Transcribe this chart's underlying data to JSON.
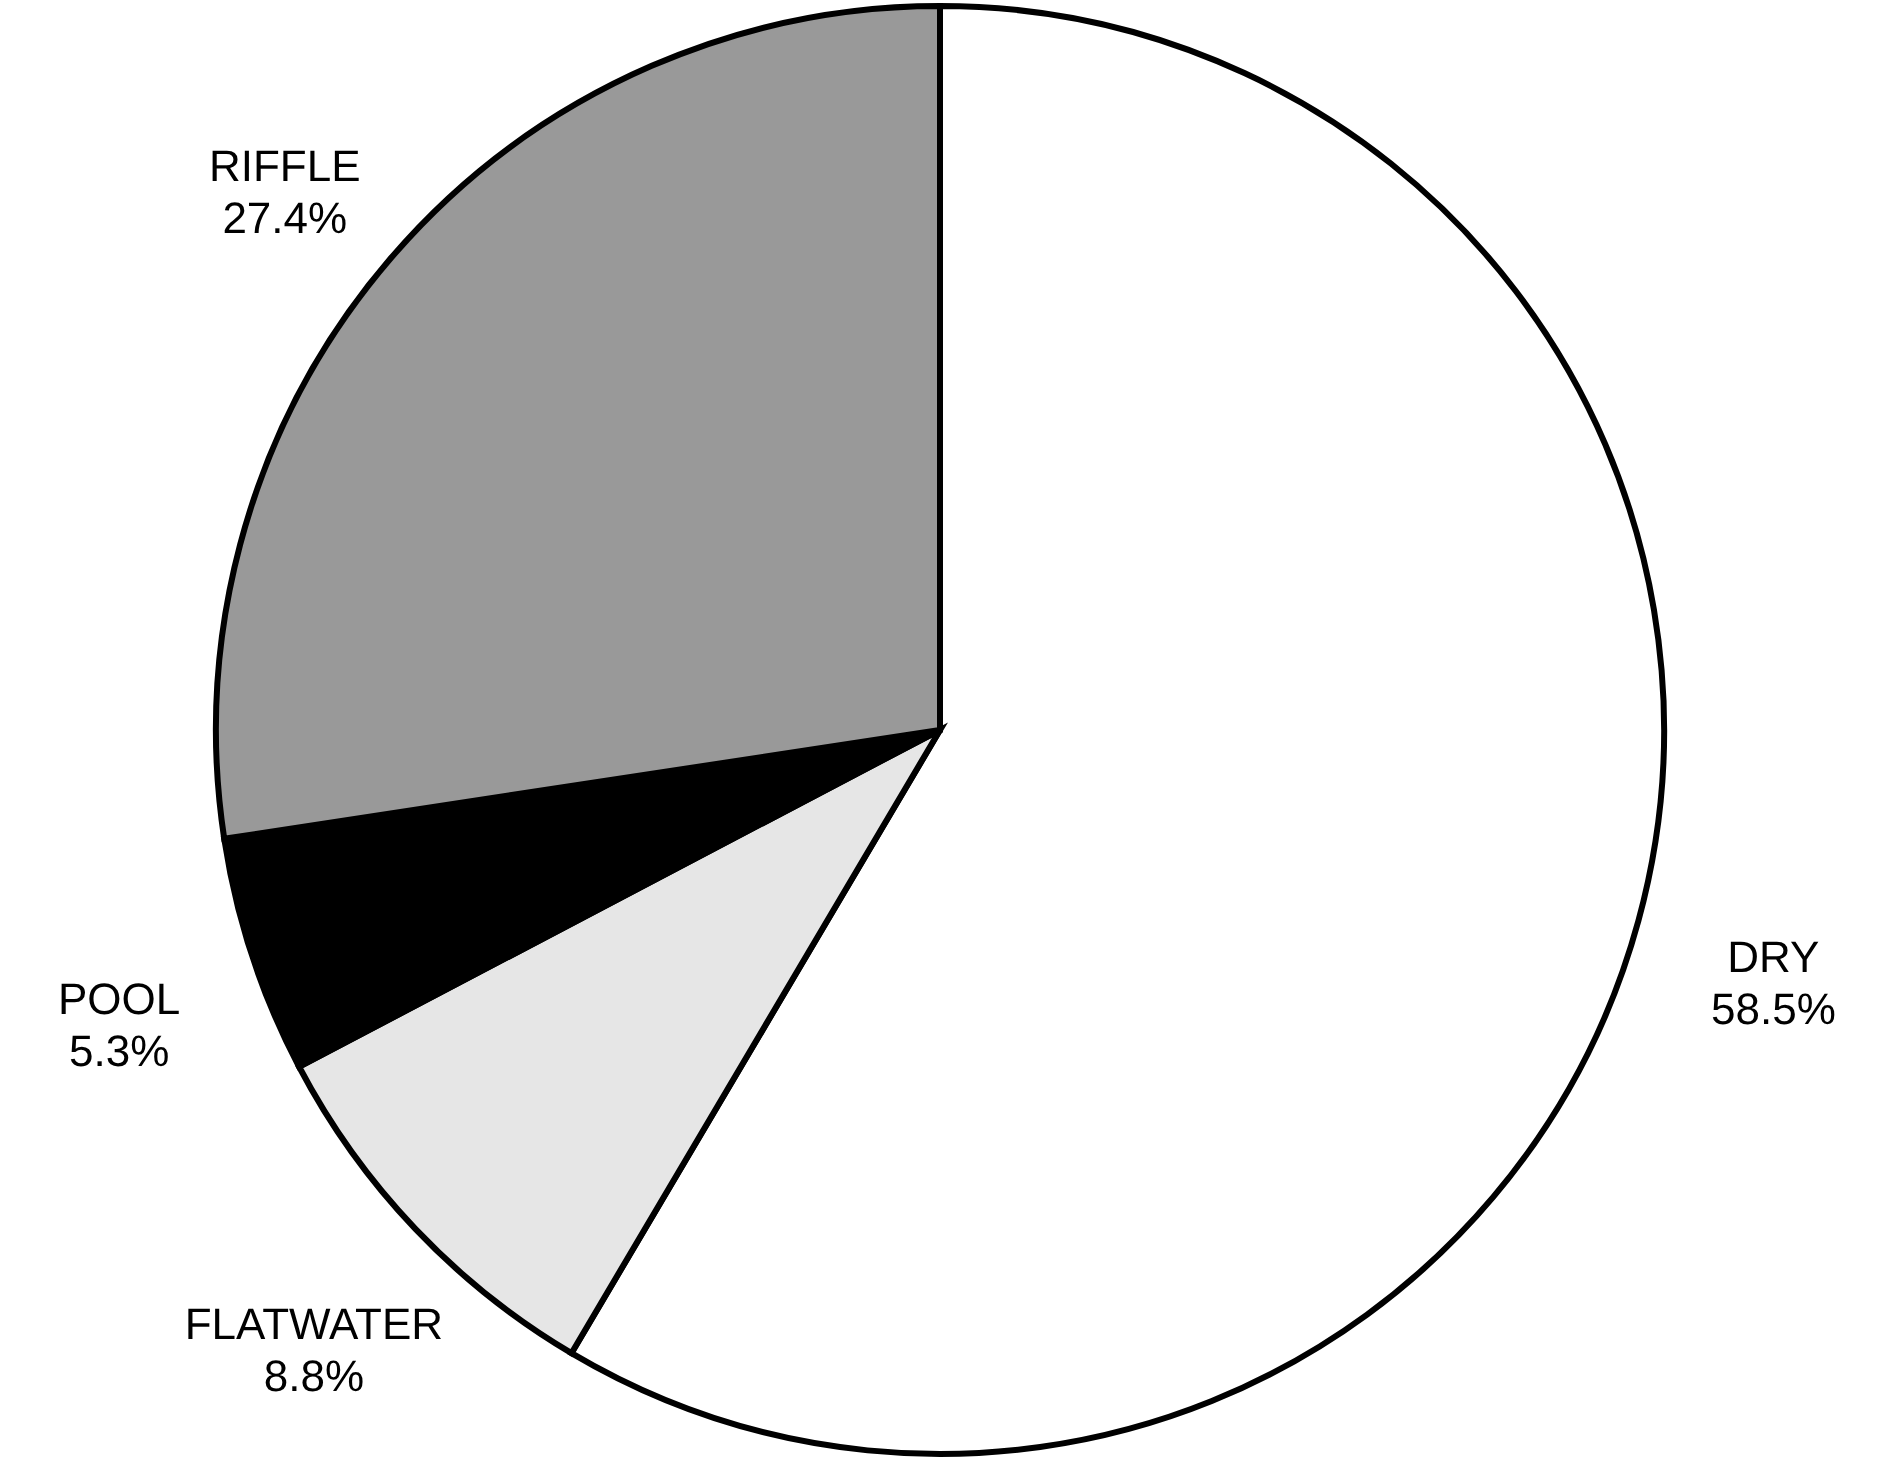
{
  "chart_data": {
    "type": "pie",
    "categories": [
      "DRY",
      "FLATWATER",
      "POOL",
      "RIFFLE"
    ],
    "values": [
      58.5,
      8.8,
      5.3,
      27.4
    ],
    "value_labels": [
      "58.5%",
      "8.8%",
      "5.3%",
      "27.4%"
    ],
    "colors": [
      "#ffffff",
      "#e6e6e6",
      "#000000",
      "#999999"
    ]
  }
}
